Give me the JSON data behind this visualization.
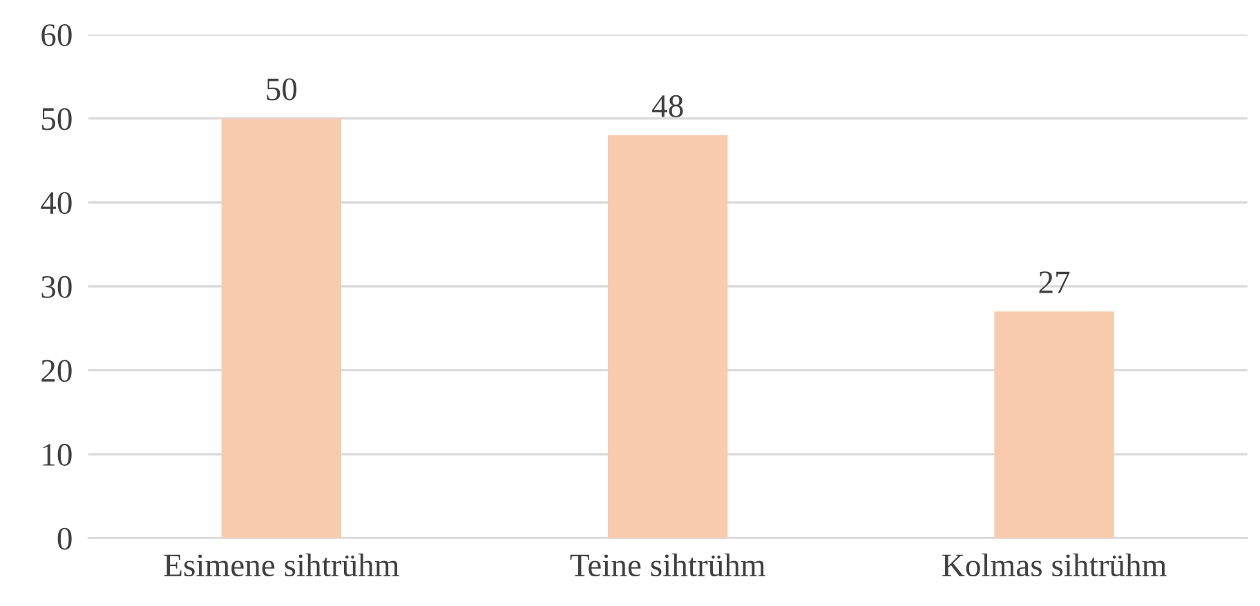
{
  "chart_data": {
    "type": "bar",
    "categories": [
      "Esimene sihtrühm",
      "Teine sihtrühm",
      "Kolmas sihtrühm"
    ],
    "values": [
      50,
      48,
      27
    ],
    "color": "#f8cbad",
    "ylim": [
      0,
      60
    ],
    "yticks": [
      0,
      10,
      20,
      30,
      40,
      50,
      60
    ],
    "grid": "y",
    "data_labels": true
  }
}
